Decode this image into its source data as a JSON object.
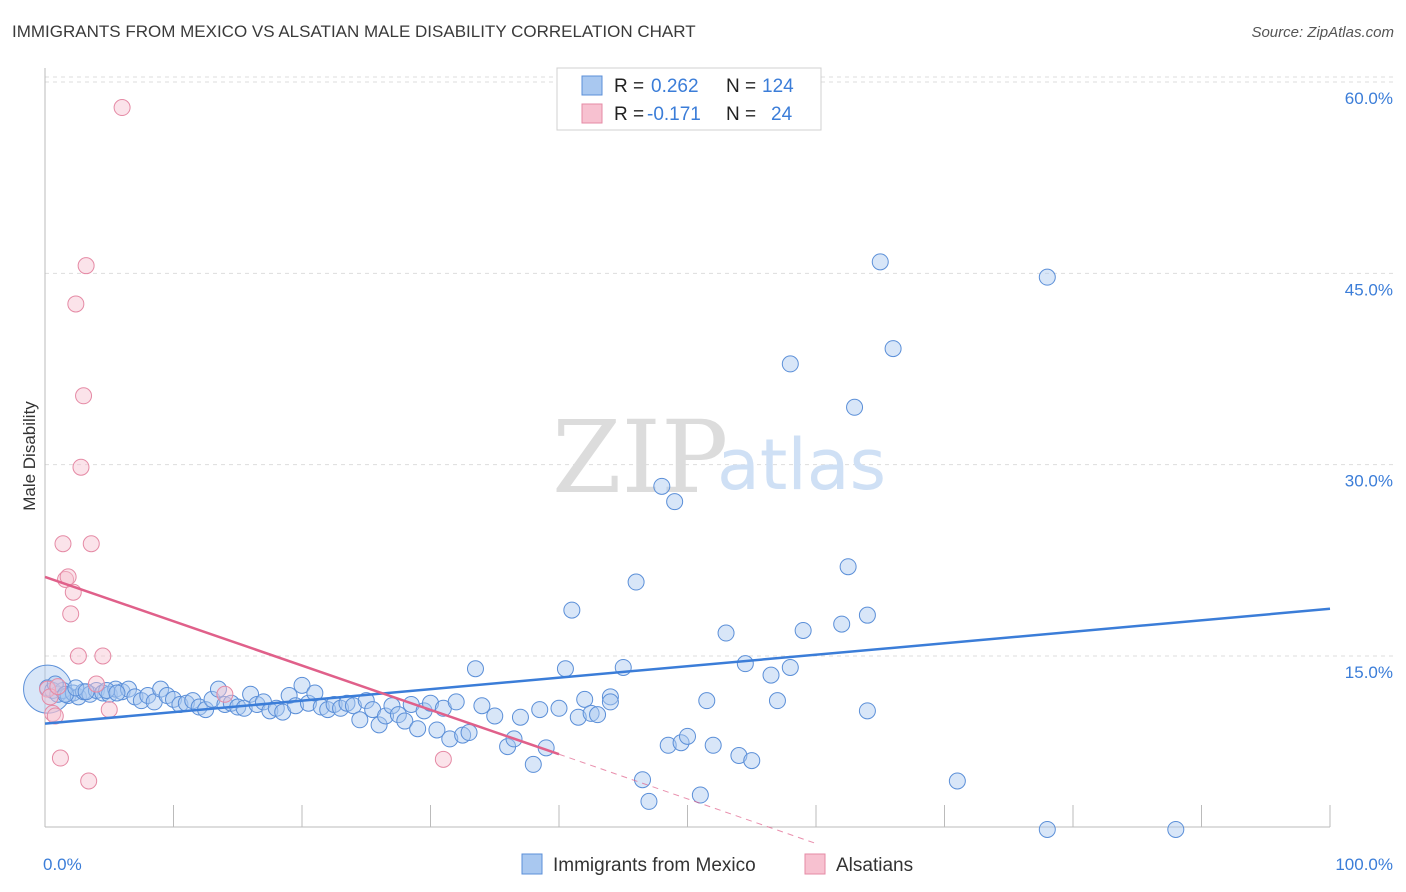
{
  "header": {
    "title": "IMMIGRANTS FROM MEXICO VS ALSATIAN MALE DISABILITY CORRELATION CHART",
    "source": "Source: ZipAtlas.com"
  },
  "watermark": {
    "part1": "ZIP",
    "part2": "atlas"
  },
  "legend": {
    "rows": [
      {
        "r_label": "R =",
        "r_value": "0.262",
        "n_label": "N =",
        "n_value": "124",
        "color": "#a9c8f0",
        "stroke": "#5b8fd8"
      },
      {
        "r_label": "R =",
        "r_value": "-0.171",
        "n_label": "N =",
        "n_value": "24",
        "color": "#f7c1d0",
        "stroke": "#e58aa5"
      }
    ]
  },
  "chart_data": {
    "type": "scatter",
    "title": "IMMIGRANTS FROM MEXICO VS ALSATIAN MALE DISABILITY CORRELATION CHART",
    "xlabel": "",
    "ylabel": "Male Disability",
    "xlim": [
      0,
      100
    ],
    "ylim": [
      0,
      63
    ],
    "x_tick_labels": [
      "0.0%",
      "100.0%"
    ],
    "y_ticks": [
      15,
      30,
      45,
      60
    ],
    "y_tick_labels": [
      "15.0%",
      "30.0%",
      "45.0%",
      "60.0%"
    ],
    "colors": {
      "blue": "#3b7dd8",
      "pink": "#e0608a"
    },
    "series": [
      {
        "name": "Immigrants from Mexico",
        "r": 0.262,
        "n": 124,
        "trend": {
          "x": [
            0,
            100
          ],
          "y": [
            9.7,
            18.7
          ]
        },
        "points": [
          [
            0.2,
            12.5
          ],
          [
            0.6,
            12.3
          ],
          [
            1.0,
            12.0
          ],
          [
            1.4,
            12.3
          ],
          [
            1.8,
            11.9
          ],
          [
            2.2,
            12.1
          ],
          [
            2.6,
            11.8
          ],
          [
            3.0,
            12.2
          ],
          [
            3.5,
            12.0
          ],
          [
            4.0,
            12.3
          ],
          [
            4.5,
            12.1
          ],
          [
            5.0,
            12.0
          ],
          [
            5.5,
            12.4
          ],
          [
            6.0,
            12.2
          ],
          [
            6.5,
            12.4
          ],
          [
            7.0,
            11.8
          ],
          [
            7.5,
            11.5
          ],
          [
            8.0,
            11.9
          ],
          [
            8.5,
            11.4
          ],
          [
            9.0,
            12.4
          ],
          [
            9.5,
            11.9
          ],
          [
            10.0,
            11.6
          ],
          [
            10.5,
            11.2
          ],
          [
            11.0,
            11.3
          ],
          [
            11.5,
            11.5
          ],
          [
            12.0,
            11.0
          ],
          [
            12.5,
            10.8
          ],
          [
            13.0,
            11.6
          ],
          [
            13.5,
            12.4
          ],
          [
            14.0,
            11.2
          ],
          [
            14.5,
            11.3
          ],
          [
            15.0,
            11.0
          ],
          [
            15.5,
            10.9
          ],
          [
            16.0,
            12.0
          ],
          [
            16.5,
            11.2
          ],
          [
            17.0,
            11.4
          ],
          [
            17.5,
            10.7
          ],
          [
            18.0,
            10.9
          ],
          [
            18.5,
            10.6
          ],
          [
            19.0,
            11.9
          ],
          [
            19.5,
            11.1
          ],
          [
            20.0,
            12.7
          ],
          [
            20.5,
            11.3
          ],
          [
            21.0,
            12.1
          ],
          [
            21.5,
            11.0
          ],
          [
            22.0,
            10.8
          ],
          [
            22.5,
            11.2
          ],
          [
            23.0,
            10.9
          ],
          [
            23.5,
            11.3
          ],
          [
            24.0,
            11.1
          ],
          [
            24.5,
            10.0
          ],
          [
            25.0,
            11.5
          ],
          [
            25.5,
            10.8
          ],
          [
            26.0,
            9.6
          ],
          [
            26.5,
            10.3
          ],
          [
            27.0,
            11.1
          ],
          [
            27.5,
            10.4
          ],
          [
            28.0,
            9.9
          ],
          [
            28.5,
            11.2
          ],
          [
            29.0,
            9.3
          ],
          [
            29.5,
            10.7
          ],
          [
            30.0,
            11.3
          ],
          [
            30.5,
            9.2
          ],
          [
            31.0,
            10.9
          ],
          [
            31.5,
            8.5
          ],
          [
            32.0,
            11.4
          ],
          [
            32.5,
            8.8
          ],
          [
            33.0,
            9.0
          ],
          [
            33.5,
            14.0
          ],
          [
            34.0,
            11.1
          ],
          [
            35.0,
            10.3
          ],
          [
            36.0,
            7.9
          ],
          [
            36.5,
            8.5
          ],
          [
            37.0,
            10.2
          ],
          [
            38.0,
            6.5
          ],
          [
            38.5,
            10.8
          ],
          [
            39.0,
            7.8
          ],
          [
            40.0,
            10.9
          ],
          [
            40.5,
            14.0
          ],
          [
            41.0,
            18.6
          ],
          [
            41.5,
            10.2
          ],
          [
            42.0,
            11.6
          ],
          [
            42.5,
            10.5
          ],
          [
            43.0,
            10.4
          ],
          [
            44.0,
            11.8
          ],
          [
            44.0,
            11.4
          ],
          [
            45.0,
            14.1
          ],
          [
            46.0,
            20.8
          ],
          [
            46.5,
            5.3
          ],
          [
            47.0,
            3.6
          ],
          [
            48.0,
            28.3
          ],
          [
            48.5,
            8.0
          ],
          [
            49.0,
            27.1
          ],
          [
            49.5,
            8.2
          ],
          [
            50.0,
            8.7
          ],
          [
            51.0,
            4.1
          ],
          [
            51.5,
            11.5
          ],
          [
            52.0,
            8.0
          ],
          [
            53.0,
            16.8
          ],
          [
            54.0,
            7.2
          ],
          [
            55.0,
            6.8
          ],
          [
            54.5,
            14.4
          ],
          [
            56.5,
            13.5
          ],
          [
            57.0,
            11.5
          ],
          [
            58.0,
            14.1
          ],
          [
            58.0,
            37.9
          ],
          [
            59.0,
            17.0
          ],
          [
            62.0,
            17.5
          ],
          [
            62.5,
            22.0
          ],
          [
            63.0,
            34.5
          ],
          [
            64.0,
            10.7
          ],
          [
            64.0,
            18.2
          ],
          [
            65.0,
            45.9
          ],
          [
            66.0,
            39.1
          ],
          [
            71.0,
            5.2
          ],
          [
            78.0,
            44.7
          ],
          [
            78.0,
            1.4
          ],
          [
            88.0,
            1.4
          ],
          [
            0.8,
            12.8
          ],
          [
            1.6,
            12.0
          ],
          [
            2.4,
            12.5
          ],
          [
            3.2,
            12.2
          ],
          [
            4.8,
            12.3
          ],
          [
            5.6,
            12.1
          ]
        ]
      },
      {
        "name": "Alsatians",
        "r": -0.171,
        "n": 24,
        "trend": {
          "x": [
            0,
            40
          ],
          "y": [
            21.2,
            7.3
          ]
        },
        "trend_dashed": {
          "x": [
            40,
            60
          ],
          "y": [
            7.3,
            0.3
          ]
        },
        "points": [
          [
            0.2,
            12.4
          ],
          [
            0.4,
            11.8
          ],
          [
            0.6,
            10.5
          ],
          [
            0.8,
            10.3
          ],
          [
            1.0,
            12.6
          ],
          [
            1.2,
            7.0
          ],
          [
            1.4,
            23.8
          ],
          [
            1.6,
            21.0
          ],
          [
            1.8,
            21.2
          ],
          [
            2.0,
            18.3
          ],
          [
            2.2,
            20.0
          ],
          [
            2.4,
            42.6
          ],
          [
            2.6,
            15.0
          ],
          [
            2.8,
            29.8
          ],
          [
            3.0,
            35.4
          ],
          [
            3.2,
            45.6
          ],
          [
            3.4,
            5.2
          ],
          [
            3.6,
            23.8
          ],
          [
            4.0,
            12.8
          ],
          [
            4.5,
            15.0
          ],
          [
            5.0,
            10.8
          ],
          [
            6.0,
            58.0
          ],
          [
            14.0,
            12.0
          ],
          [
            31.0,
            6.9
          ]
        ]
      }
    ]
  },
  "bottom_legend": {
    "items": [
      {
        "label": "Immigrants from Mexico",
        "color": "#a9c8f0",
        "stroke": "#5b8fd8"
      },
      {
        "label": "Alsatians",
        "color": "#f7c1d0",
        "stroke": "#e58aa5"
      }
    ]
  }
}
